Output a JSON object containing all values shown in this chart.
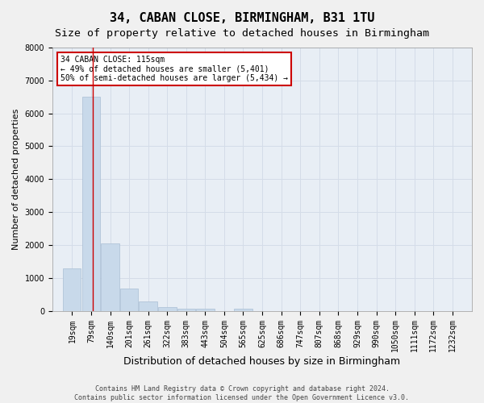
{
  "title": "34, CABAN CLOSE, BIRMINGHAM, B31 1TU",
  "subtitle": "Size of property relative to detached houses in Birmingham",
  "xlabel": "Distribution of detached houses by size in Birmingham",
  "ylabel": "Number of detached properties",
  "bar_color": "#c8d9ea",
  "bar_edge_color": "#aabfd4",
  "grid_color": "#d4dce8",
  "background_color": "#e8eef5",
  "fig_background": "#f0f0f0",
  "bin_labels": [
    "19sqm",
    "79sqm",
    "140sqm",
    "201sqm",
    "261sqm",
    "322sqm",
    "383sqm",
    "443sqm",
    "504sqm",
    "565sqm",
    "625sqm",
    "686sqm",
    "747sqm",
    "807sqm",
    "868sqm",
    "929sqm",
    "990sqm",
    "1050sqm",
    "1111sqm",
    "1172sqm",
    "1232sqm"
  ],
  "bar_heights": [
    1300,
    6500,
    2050,
    680,
    280,
    115,
    75,
    55,
    0,
    75,
    0,
    0,
    0,
    0,
    0,
    0,
    0,
    0,
    0,
    0,
    0
  ],
  "bin_edges": [
    19,
    79,
    140,
    201,
    261,
    322,
    383,
    443,
    504,
    565,
    625,
    686,
    747,
    807,
    868,
    929,
    990,
    1050,
    1111,
    1172,
    1232,
    1292
  ],
  "property_size": 115,
  "vline_color": "#cc0000",
  "annotation_line1": "34 CABAN CLOSE: 115sqm",
  "annotation_line2": "← 49% of detached houses are smaller (5,401)",
  "annotation_line3": "50% of semi-detached houses are larger (5,434) →",
  "annotation_box_color": "#cc0000",
  "annotation_bg_color": "#ffffff",
  "ylim": [
    0,
    8000
  ],
  "yticks": [
    0,
    1000,
    2000,
    3000,
    4000,
    5000,
    6000,
    7000,
    8000
  ],
  "footer_line1": "Contains HM Land Registry data © Crown copyright and database right 2024.",
  "footer_line2": "Contains public sector information licensed under the Open Government Licence v3.0.",
  "title_fontsize": 11,
  "subtitle_fontsize": 9.5,
  "xlabel_fontsize": 9,
  "ylabel_fontsize": 8,
  "tick_fontsize": 7,
  "annotation_fontsize": 7,
  "footer_fontsize": 6
}
